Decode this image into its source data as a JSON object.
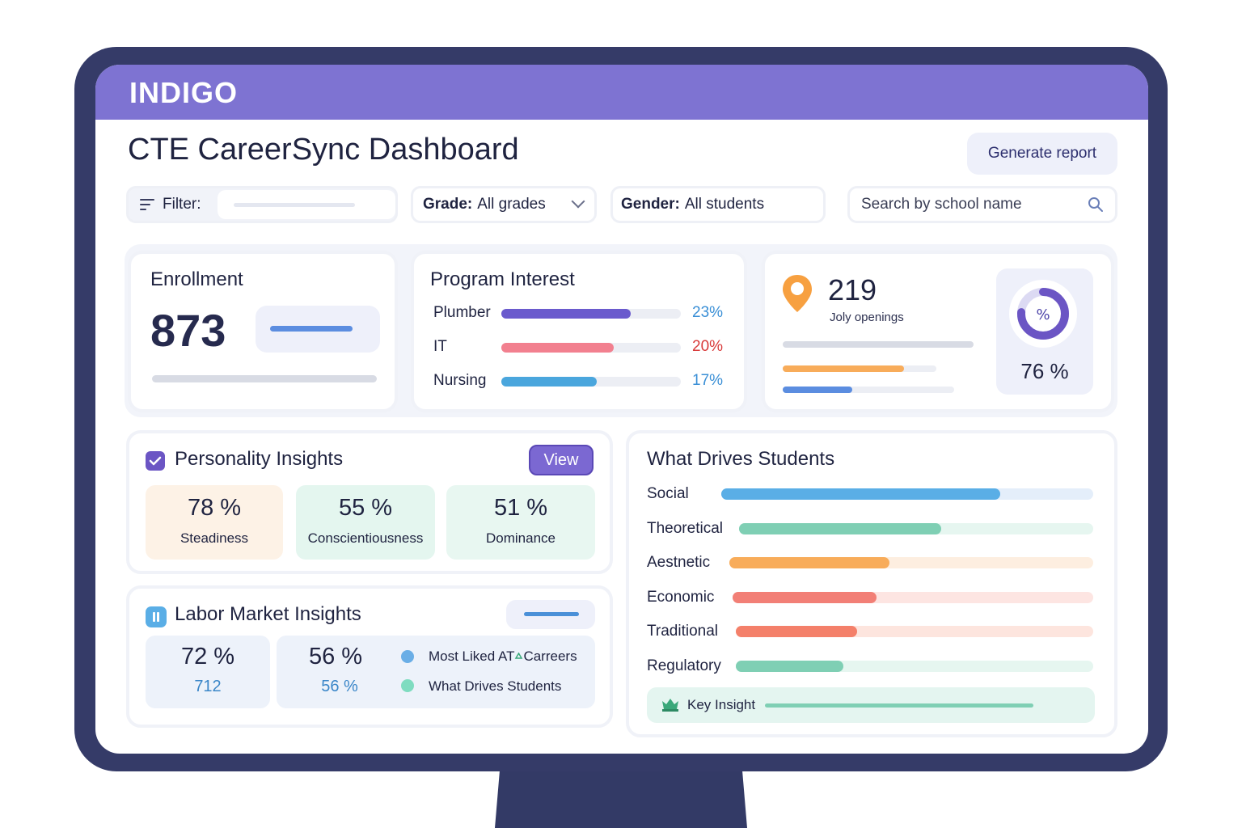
{
  "app": {
    "logo": "INDIGO",
    "title": "CTE CareerSync Dashboard",
    "generate_label": "Generate report"
  },
  "filters": {
    "filter_label": "Filter:",
    "grade_label": "Grade:",
    "grade_value": "All grades",
    "gender_label": "Gender:",
    "gender_value": "All students",
    "search_placeholder": "Search by school name"
  },
  "enrollment": {
    "title": "Enrollment",
    "value": "873"
  },
  "program_interest": {
    "title": "Program Interest",
    "items": [
      {
        "label": "Plumber",
        "pct": "23%",
        "value": 23,
        "color": "#6a5acd",
        "pct_color": "#3a8fd6"
      },
      {
        "label": "IT",
        "pct": "20%",
        "value": 20,
        "color": "#f2808f",
        "pct_color": "#d83a3a"
      },
      {
        "label": "Nursing",
        "pct": "17%",
        "value": 17,
        "color": "#4aa6dd",
        "pct_color": "#3a8fd6"
      }
    ]
  },
  "jobs": {
    "value": "219",
    "label": "Joly openings",
    "donut_pct": "76 %",
    "donut_value": 76,
    "donut_symbol": "%"
  },
  "personality": {
    "title": "Personality Insights",
    "view_label": "View",
    "tiles": [
      {
        "value": "78 %",
        "label": "Steadiness",
        "bg": "#fdf2e6"
      },
      {
        "value": "55 %",
        "label": "Conscientiousness",
        "bg": "#e4f6ef"
      },
      {
        "value": "51 %",
        "label": "Dominance",
        "bg": "#e8f7f1"
      }
    ]
  },
  "labor": {
    "title": "Labor Market Insights",
    "tiles": [
      {
        "value": "72 %",
        "sub": "712"
      },
      {
        "value": "56 %",
        "sub": "56 %"
      }
    ],
    "legend": [
      {
        "label": "Most Liked AT",
        "icon": "recycle-icon",
        "label2": "Carreers",
        "color": "#6aaee6"
      },
      {
        "label": "What Drives Students",
        "color": "#7fdcc0"
      }
    ]
  },
  "drives": {
    "title": "What Drives Students",
    "items": [
      {
        "label": "Social",
        "value": 0.75,
        "fill": "#5aaee6",
        "track": "#e4eefa"
      },
      {
        "label": "Theoretical",
        "value": 0.57,
        "fill": "#7fcfb4",
        "track": "#e6f6f0"
      },
      {
        "label": "Aestnetic",
        "value": 0.44,
        "fill": "#f8ac5a",
        "track": "#fdeee0"
      },
      {
        "label": "Economic",
        "value": 0.4,
        "fill": "#f27f76",
        "track": "#fde5e2"
      },
      {
        "label": "Traditional",
        "value": 0.34,
        "fill": "#f4806a",
        "track": "#fde5de"
      },
      {
        "label": "Regulatory",
        "value": 0.3,
        "fill": "#7fcfb4",
        "track": "#e6f6f0"
      }
    ],
    "key_insight": "Key Insight"
  }
}
